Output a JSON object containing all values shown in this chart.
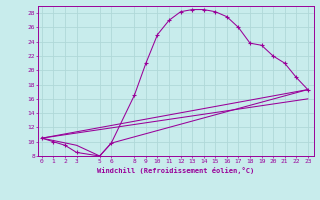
{
  "xlabel": "Windchill (Refroidissement éolien,°C)",
  "background_color": "#c8ecec",
  "grid_color": "#b0d8d8",
  "line_color": "#990099",
  "x_ticks": [
    0,
    1,
    2,
    3,
    5,
    6,
    8,
    9,
    10,
    11,
    12,
    13,
    14,
    15,
    16,
    17,
    18,
    19,
    20,
    21,
    22,
    23
  ],
  "ylim": [
    8,
    29
  ],
  "xlim": [
    -0.3,
    23.5
  ],
  "line1_x": [
    0,
    1,
    2,
    3,
    5,
    6,
    8,
    9,
    10,
    11,
    12,
    13,
    14,
    15,
    16,
    17,
    18,
    19,
    20,
    21,
    22,
    23
  ],
  "line1_y": [
    10.5,
    10.0,
    9.5,
    8.5,
    8.0,
    9.8,
    16.5,
    21.0,
    25.0,
    27.0,
    28.2,
    28.5,
    28.5,
    28.2,
    27.5,
    26.0,
    23.8,
    23.5,
    22.0,
    21.0,
    19.0,
    17.3
  ],
  "line2_x": [
    0,
    23
  ],
  "line2_y": [
    10.5,
    17.3
  ],
  "line3_x": [
    0,
    3,
    5,
    6,
    23
  ],
  "line3_y": [
    10.5,
    9.5,
    8.0,
    9.8,
    17.3
  ],
  "line4_x": [
    0,
    23
  ],
  "line4_y": [
    10.5,
    16.0
  ],
  "ytick_labels": [
    "8",
    "10",
    "12",
    "14",
    "16",
    "18",
    "20",
    "22",
    "24",
    "26",
    "28"
  ],
  "yticks": [
    8,
    10,
    12,
    14,
    16,
    18,
    20,
    22,
    24,
    26,
    28
  ]
}
